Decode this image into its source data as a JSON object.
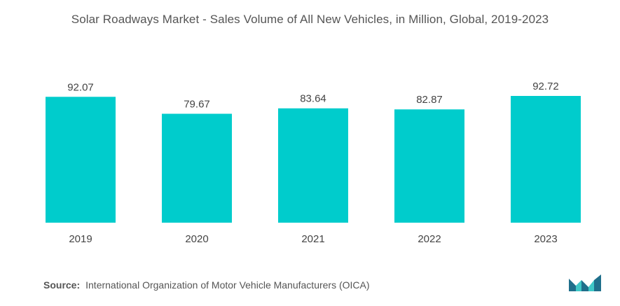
{
  "chart_data": {
    "type": "bar",
    "title": "Solar Roadways Market - Sales Volume of All New Vehicles, in Million, Global, 2019-2023",
    "categories": [
      "2019",
      "2020",
      "2021",
      "2022",
      "2023"
    ],
    "values": [
      92.07,
      79.67,
      83.64,
      82.87,
      92.72
    ],
    "value_labels": [
      "92.07",
      "79.67",
      "83.64",
      "82.87",
      "92.72"
    ],
    "xlabel": "",
    "ylabel": "",
    "ylim": [
      0,
      92.72
    ],
    "grid": false,
    "legend": "none",
    "bar_color": "#00cccc"
  },
  "footer": {
    "source_label": "Source:",
    "source_text": "International Organization of Motor Vehicle Manufacturers (OICA)"
  },
  "logo": {
    "icon": "mordor-intelligence-logo-icon",
    "colors": [
      "#1f6f8b",
      "#3ec7c7"
    ]
  }
}
